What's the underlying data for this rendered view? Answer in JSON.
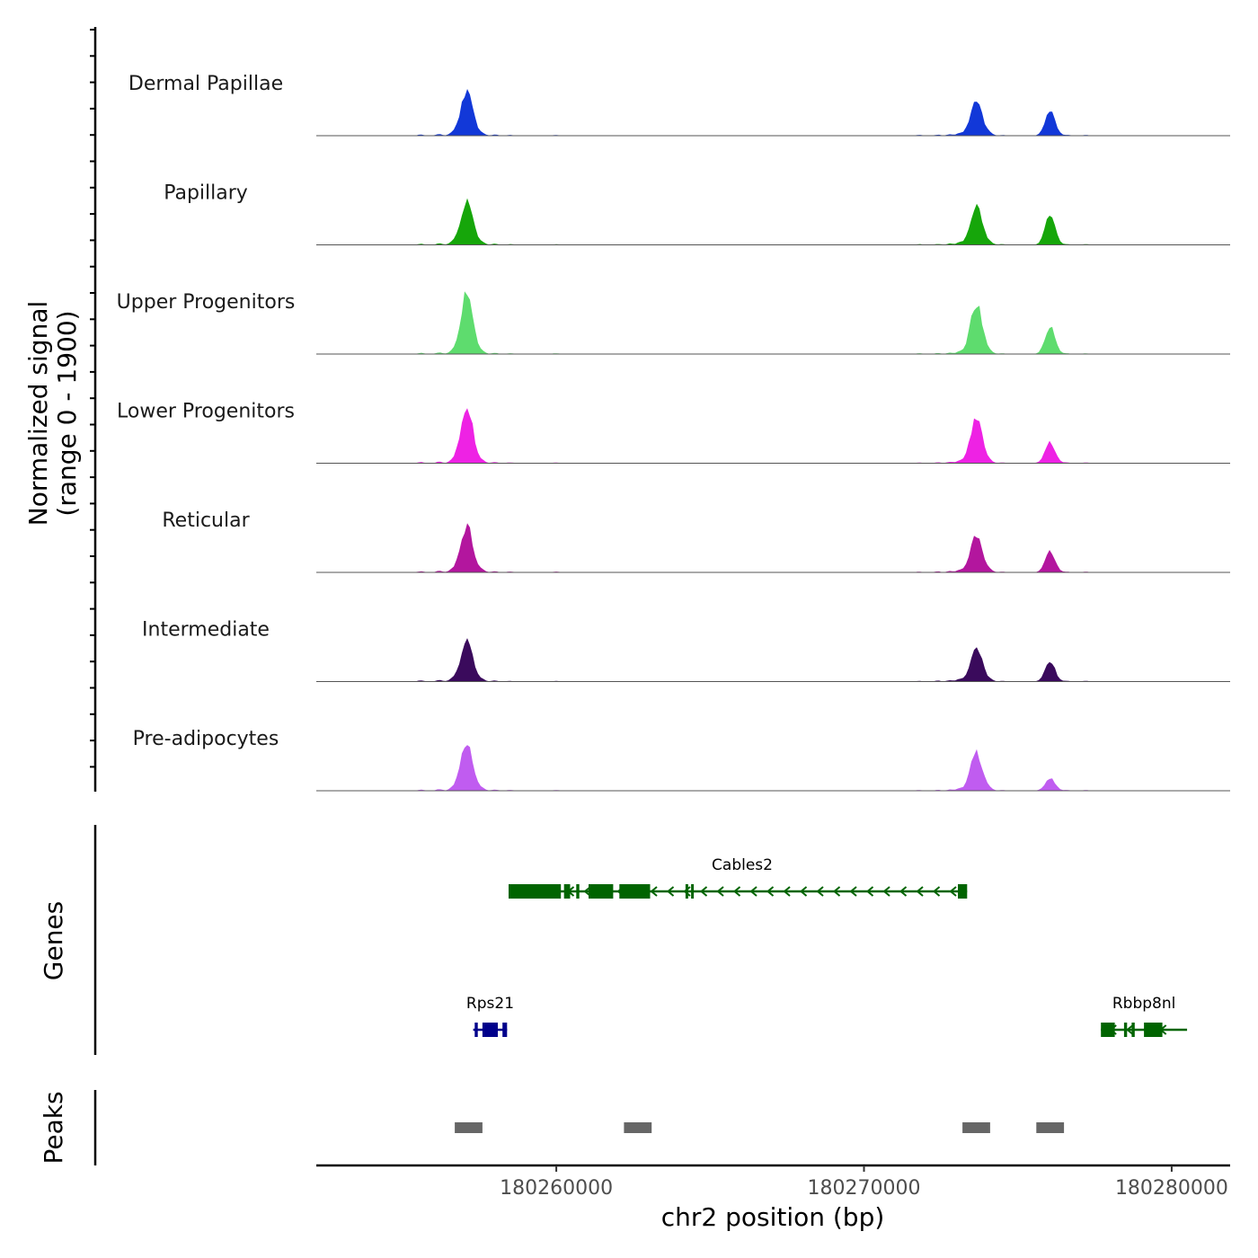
{
  "chart_data": {
    "type": "area",
    "subtype": "genome-coverage-track",
    "chromosome": "chr2",
    "xlabel": "chr2 position (bp)",
    "ylabel_line1": "Normalized signal",
    "ylabel_line2": "(range 0 - 1900)",
    "y_range": [
      0,
      1900
    ],
    "x_range": [
      180252200,
      180281900
    ],
    "x_ticks": [
      180260000,
      180270000,
      180280000
    ],
    "x_tick_labels": [
      "180260000",
      "180270000",
      "180280000"
    ],
    "peak_positions": [
      180257100,
      180273650,
      180276050
    ],
    "tracks": [
      {
        "name": "Dermal Papillae",
        "color": "#1238d8",
        "peaks": [
          1500,
          1200,
          820
        ]
      },
      {
        "name": "Papillary",
        "color": "#16a60a",
        "peaks": [
          1480,
          1320,
          980
        ]
      },
      {
        "name": "Upper Progenitors",
        "color": "#5edc6e",
        "peaks": [
          2100,
          1720,
          960
        ]
      },
      {
        "name": "Lower Progenitors",
        "color": "#ee22e4",
        "peaks": [
          1960,
          1540,
          720
        ]
      },
      {
        "name": "Reticular",
        "color": "#b3169e",
        "peaks": [
          1580,
          1230,
          700
        ]
      },
      {
        "name": "Intermediate",
        "color": "#3a0a5c",
        "peaks": [
          1380,
          1160,
          660
        ]
      },
      {
        "name": "Pre-adipocytes",
        "color": "#c05cf0",
        "peaks": [
          1660,
          1300,
          420
        ]
      }
    ],
    "genes_panel_label": "Genes",
    "peaks_panel_label": "Peaks",
    "genes": [
      {
        "name": "Cables2",
        "start": 180258450,
        "end": 180273350,
        "strand": "-",
        "color": "#006400",
        "exons": [
          [
            180258450,
            180260150
          ],
          [
            180260250,
            180260450
          ],
          [
            180260650,
            180260750
          ],
          [
            180261050,
            180261850
          ],
          [
            180262050,
            180263050
          ],
          [
            180264200,
            180264280
          ],
          [
            180264380,
            180264460
          ],
          [
            180273050,
            180273350
          ]
        ]
      },
      {
        "name": "Rps21",
        "start": 180257300,
        "end": 180258400,
        "strand": "+",
        "color": "#00008b",
        "exons": [
          [
            180257350,
            180257450
          ],
          [
            180257600,
            180258100
          ],
          [
            180258250,
            180258400
          ]
        ]
      },
      {
        "name": "Rbbp8nl",
        "start": 180277700,
        "end": 180280500,
        "strand": "-",
        "color": "#006400",
        "exons": [
          [
            180277700,
            180278150
          ],
          [
            180278450,
            180278550
          ],
          [
            180278700,
            180278800
          ],
          [
            180279100,
            180279700
          ]
        ]
      }
    ],
    "peak_regions": [
      [
        180256700,
        180257600
      ],
      [
        180262200,
        180263100
      ],
      [
        180273200,
        180274100
      ],
      [
        180275600,
        180276500
      ]
    ]
  }
}
